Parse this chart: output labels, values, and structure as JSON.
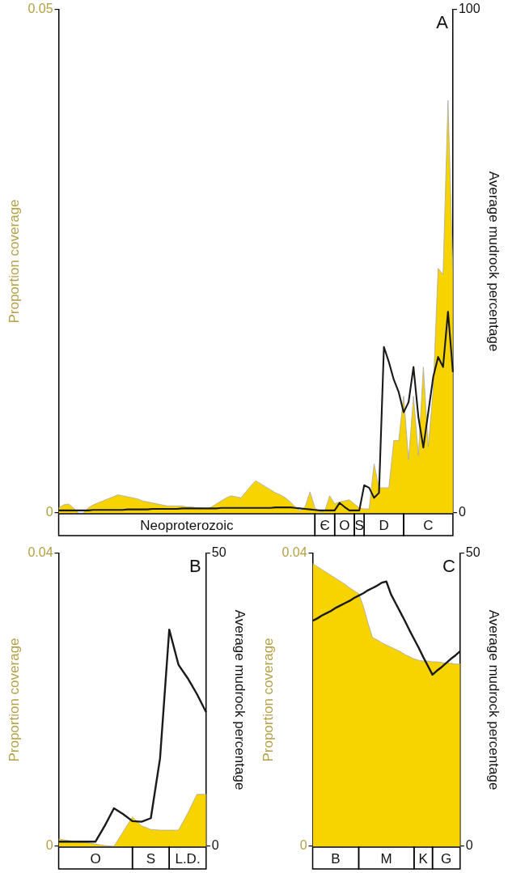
{
  "chart_data": [
    {
      "type": "area",
      "ylabel": "Proportion coverage",
      "y2label": "Average mudrock percentage",
      "annotations": [
        "A"
      ],
      "marker": "none",
      "categories": [
        null,
        null,
        null,
        null,
        null,
        null,
        null,
        null,
        null,
        null,
        null,
        null,
        null,
        null,
        null,
        null,
        null,
        null,
        null,
        null,
        null,
        null,
        null,
        null,
        null,
        null,
        "Neoproterozoic",
        null,
        null,
        null,
        null,
        null,
        null,
        null,
        null,
        null,
        null,
        null,
        null,
        null,
        null,
        null,
        null,
        null,
        null,
        null,
        null,
        null,
        null,
        null,
        null,
        null,
        null,
        null,
        "Є",
        null,
        null,
        null,
        "O",
        null,
        null,
        "S",
        null,
        null,
        null,
        null,
        "D",
        null,
        null,
        null,
        null,
        null,
        null,
        null,
        null,
        "C",
        null,
        null,
        null,
        null,
        null
      ],
      "ylim": [
        0,
        0.05
      ],
      "yticks": [
        0,
        0.05
      ],
      "y2lim": [
        0,
        100
      ],
      "y2ticks": [
        0,
        100
      ],
      "series": [
        {
          "type": "area",
          "color": "#f7d300",
          "values": [
            0.0005,
            0.0008,
            0.0009,
            0.0005,
            0,
            0,
            0.0005,
            0.0008,
            0.001,
            0.0012,
            0.0014,
            0.0016,
            0.0018,
            0.0017,
            0.0016,
            0.0015,
            0.0014,
            0.0012,
            0.0011,
            0.001,
            0.0009,
            0.0008,
            0.0007,
            0.0007,
            0.0007,
            0.0007,
            0.0006,
            0.0006,
            0.0005,
            0.0005,
            0.0004,
            0.0006,
            0.0009,
            0.0012,
            0.0015,
            0.0017,
            0.0016,
            0.0015,
            0.0021,
            0.0027,
            0.0032,
            0.0029,
            0.0026,
            0.0023,
            0.002,
            0.0018,
            0.0015,
            0.0011,
            0.0006,
            0.0002,
            0.0006,
            0.0021,
            0.0005,
            0.0001,
            0.0002,
            0.0017,
            0.0009,
            0.0011,
            0.0012,
            0.0013,
            0.0009,
            0.0005,
            0.0004,
            0.0004,
            0.0049,
            0.0025,
            0.0025,
            0.0025,
            0.0072,
            0.0072,
            0.0116,
            0.0053,
            0.0116,
            0.0057,
            0.0145,
            0.0066,
            0.0123,
            0.0243,
            0.0237,
            0.041,
            0.024
          ]
        },
        {
          "type": "line",
          "axis": "y2",
          "color": "#1a1a1a",
          "values": [
            0.5,
            0.5,
            0.5,
            0.5,
            0.5,
            0.5,
            0.5,
            0.6,
            0.6,
            0.6,
            0.6,
            0.6,
            0.6,
            0.6,
            0.7,
            0.7,
            0.7,
            0.7,
            0.7,
            0.8,
            0.8,
            0.8,
            0.8,
            0.8,
            0.8,
            0.9,
            0.9,
            0.9,
            0.9,
            0.9,
            0.9,
            0.9,
            0.9,
            1,
            1,
            1,
            1,
            1,
            1,
            1,
            1,
            1,
            1,
            1,
            1.1,
            1.1,
            1.1,
            1.1,
            1,
            0.9,
            0.8,
            0.7,
            0.6,
            0.5,
            0.5,
            0.5,
            0.5,
            2,
            1.2,
            0.5,
            0.5,
            0.5,
            5.5,
            5,
            3,
            4,
            33,
            30,
            26.5,
            24,
            20,
            22,
            29,
            19,
            13,
            20,
            27,
            31,
            29,
            40,
            28
          ]
        }
      ]
    },
    {
      "type": "area",
      "ylabel": "Proportion coverage",
      "y2label": "Average mudrock percentage",
      "annotations": [
        "B"
      ],
      "marker": "none",
      "categories": [
        null,
        null,
        null,
        null,
        "O",
        null,
        null,
        null,
        null,
        null,
        "S",
        null,
        null,
        null,
        "L.D.",
        null,
        null
      ],
      "ylim": [
        0,
        0.04
      ],
      "yticks": [
        0,
        0.04
      ],
      "y2lim": [
        0,
        50
      ],
      "y2ticks": [
        0,
        50
      ],
      "series": [
        {
          "type": "area",
          "color": "#f7d300",
          "values": [
            0.001,
            0.0008,
            0.0006,
            0.0005,
            0.0003,
            0.0001,
            0,
            0.002,
            0.004,
            0.0028,
            0.0023,
            0.0022,
            0.0022,
            0.0022,
            0.0045,
            0.0071,
            0.0071
          ]
        },
        {
          "type": "line",
          "axis": "y2",
          "color": "#1a1a1a",
          "values": [
            0.8,
            0.8,
            0.8,
            0.8,
            0.8,
            3.5,
            6.5,
            5.5,
            4.3,
            4.2,
            4.8,
            15,
            37,
            31,
            28.7,
            26,
            22.9
          ]
        }
      ]
    },
    {
      "type": "area",
      "ylabel": "Proportion coverage",
      "y2label": "Average mudrock percentage",
      "annotations": [
        "C"
      ],
      "marker": "none",
      "categories": [
        null,
        null,
        null,
        null,
        null,
        "B",
        null,
        null,
        null,
        null,
        null,
        null,
        null,
        null,
        null,
        null,
        "M",
        null,
        null,
        null,
        null,
        null,
        null,
        null,
        "K",
        null,
        null,
        null,
        null,
        "G",
        null,
        null,
        null
      ],
      "ylim": [
        0,
        0.04
      ],
      "yticks": [
        0,
        0.04
      ],
      "y2lim": [
        0,
        50
      ],
      "y2ticks": [
        0,
        50
      ],
      "series": [
        {
          "type": "area",
          "color": "#f7d300",
          "values": [
            0.0386,
            0.0382,
            0.0378,
            0.0374,
            0.037,
            0.0366,
            0.0362,
            0.0358,
            0.0353,
            0.0349,
            0.0345,
            0.0328,
            0.0305,
            0.0285,
            0.0282,
            0.0278,
            0.0275,
            0.0272,
            0.0269,
            0.0266,
            0.0262,
            0.0259,
            0.0256,
            0.0254,
            0.0253,
            0.0253,
            0.0252,
            0.0252,
            0.0251,
            0.025,
            0.025,
            0.0249,
            0.0249
          ]
        },
        {
          "type": "line",
          "axis": "y2",
          "color": "#1a1a1a",
          "values": [
            38.5,
            38.9,
            39.4,
            39.8,
            40.2,
            40.7,
            41.1,
            41.5,
            41.9,
            42.4,
            42.8,
            43.2,
            43.7,
            44.1,
            44.5,
            45,
            45.2,
            43,
            41.5,
            40,
            38.5,
            36.9,
            35.4,
            33.9,
            32.3,
            30.8,
            29.3,
            30,
            30.6,
            31.3,
            32,
            32.6,
            33.3
          ]
        }
      ]
    }
  ]
}
